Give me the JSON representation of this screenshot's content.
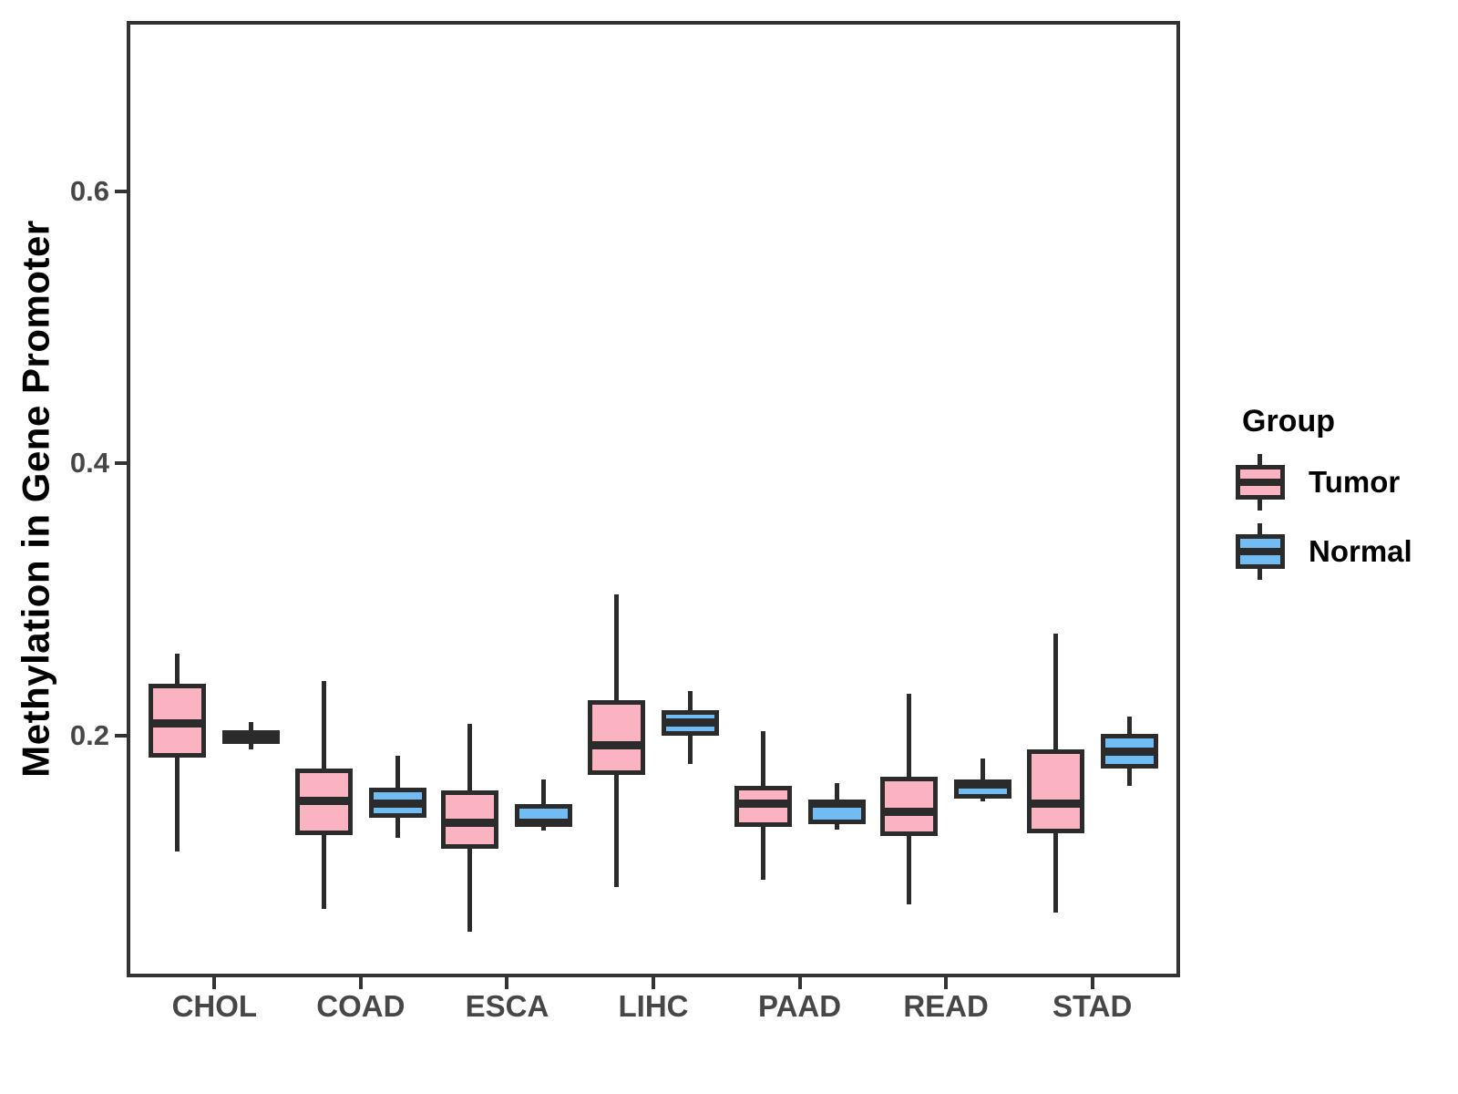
{
  "axes": {
    "y_title": "Methylation in Gene Promoter"
  },
  "legend": {
    "title": "Group",
    "items": [
      {
        "label": "Tumor",
        "color": "#FBB3C2"
      },
      {
        "label": "Normal",
        "color": "#70BCF3"
      }
    ]
  },
  "colors": {
    "stroke": "#2B2B2B",
    "panel_border": "#333333",
    "tick_label": "#474747",
    "text": "#000000",
    "background": "#FFFFFF"
  },
  "chart_data": {
    "type": "boxplot",
    "title": "",
    "xlabel": "",
    "ylabel": "Methylation in Gene Promoter",
    "grid": false,
    "legend_position": "right",
    "categories": [
      "CHOL",
      "COAD",
      "ESCA",
      "LIHC",
      "PAAD",
      "READ",
      "STAD"
    ],
    "y_ticks": [
      "0.2",
      "0.4",
      "0.6"
    ],
    "y_tick_values": [
      0.2,
      0.4,
      0.6
    ],
    "ylim": [
      0.0225,
      0.725
    ],
    "series": [
      {
        "name": "Tumor",
        "fill": "#FBB3C2",
        "boxes": [
          {
            "category": "CHOL",
            "low": 0.115,
            "q1": 0.184,
            "median": 0.209,
            "q3": 0.238,
            "high": 0.26
          },
          {
            "category": "COAD",
            "low": 0.073,
            "q1": 0.127,
            "median": 0.152,
            "q3": 0.176,
            "high": 0.24
          },
          {
            "category": "ESCA",
            "low": 0.056,
            "q1": 0.117,
            "median": 0.136,
            "q3": 0.16,
            "high": 0.209
          },
          {
            "category": "LIHC",
            "low": 0.089,
            "q1": 0.171,
            "median": 0.193,
            "q3": 0.226,
            "high": 0.304
          },
          {
            "category": "PAAD",
            "low": 0.094,
            "q1": 0.133,
            "median": 0.15,
            "q3": 0.163,
            "high": 0.203
          },
          {
            "category": "READ",
            "low": 0.076,
            "q1": 0.126,
            "median": 0.144,
            "q3": 0.17,
            "high": 0.231
          },
          {
            "category": "STAD",
            "low": 0.07,
            "q1": 0.128,
            "median": 0.15,
            "q3": 0.19,
            "high": 0.275
          }
        ]
      },
      {
        "name": "Normal",
        "fill": "#70BCF3",
        "boxes": [
          {
            "category": "CHOL",
            "low": 0.19,
            "q1": 0.194,
            "median": 0.199,
            "q3": 0.204,
            "high": 0.21
          },
          {
            "category": "COAD",
            "low": 0.125,
            "q1": 0.14,
            "median": 0.15,
            "q3": 0.162,
            "high": 0.185
          },
          {
            "category": "ESCA",
            "low": 0.13,
            "q1": 0.133,
            "median": 0.136,
            "q3": 0.15,
            "high": 0.168
          },
          {
            "category": "LIHC",
            "low": 0.179,
            "q1": 0.2,
            "median": 0.21,
            "q3": 0.219,
            "high": 0.233
          },
          {
            "category": "PAAD",
            "low": 0.131,
            "q1": 0.135,
            "median": 0.15,
            "q3": 0.153,
            "high": 0.165
          },
          {
            "category": "READ",
            "low": 0.152,
            "q1": 0.154,
            "median": 0.164,
            "q3": 0.168,
            "high": 0.183
          },
          {
            "category": "STAD",
            "low": 0.163,
            "q1": 0.176,
            "median": 0.188,
            "q3": 0.201,
            "high": 0.214
          }
        ]
      }
    ]
  }
}
